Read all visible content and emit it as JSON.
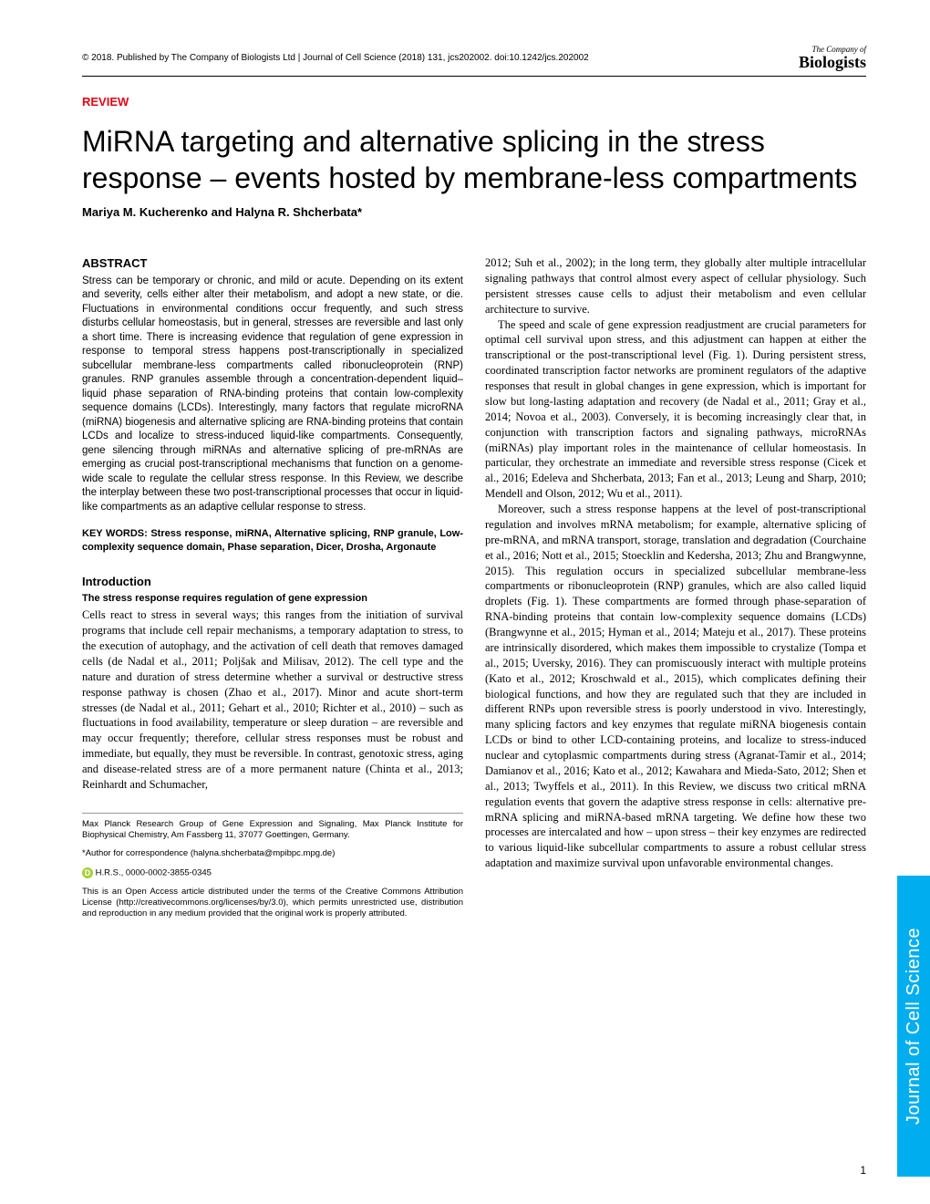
{
  "header": {
    "citation": "© 2018. Published by The Company of Biologists Ltd | Journal of Cell Science (2018) 131, jcs202002. doi:10.1242/jcs.202002",
    "logo_top": "The Company of",
    "logo_bottom": "Biologists"
  },
  "article": {
    "type_label": "REVIEW",
    "title": "MiRNA targeting and alternative splicing in the stress response – events hosted by membrane-less compartments",
    "authors": "Mariya M. Kucherenko and Halyna R. Shcherbata*"
  },
  "abstract": {
    "heading": "ABSTRACT",
    "text": "Stress can be temporary or chronic, and mild or acute. Depending on its extent and severity, cells either alter their metabolism, and adopt a new state, or die. Fluctuations in environmental conditions occur frequently, and such stress disturbs cellular homeostasis, but in general, stresses are reversible and last only a short time. There is increasing evidence that regulation of gene expression in response to temporal stress happens post-transcriptionally in specialized subcellular membrane-less compartments called ribonucleoprotein (RNP) granules. RNP granules assemble through a concentration-dependent liquid–liquid phase separation of RNA-binding proteins that contain low-complexity sequence domains (LCDs). Interestingly, many factors that regulate microRNA (miRNA) biogenesis and alternative splicing are RNA-binding proteins that contain LCDs and localize to stress-induced liquid-like compartments. Consequently, gene silencing through miRNAs and alternative splicing of pre-mRNAs are emerging as crucial post-transcriptional mechanisms that function on a genome-wide scale to regulate the cellular stress response. In this Review, we describe the interplay between these two post-transcriptional processes that occur in liquid-like compartments as an adaptive cellular response to stress."
  },
  "keywords": {
    "text": "KEY WORDS: Stress response, miRNA, Alternative splicing, RNP granule, Low-complexity sequence domain, Phase separation, Dicer, Drosha, Argonaute"
  },
  "intro": {
    "heading": "Introduction",
    "subheading": "The stress response requires regulation of gene expression",
    "para1": "Cells react to stress in several ways; this ranges from the initiation of survival programs that include cell repair mechanisms, a temporary adaptation to stress, to the execution of autophagy, and the activation of cell death that removes damaged cells (de Nadal et al., 2011; Poljšak and Milisav, 2012). The cell type and the nature and duration of stress determine whether a survival or destructive stress response pathway is chosen (Zhao et al., 2017). Minor and acute short-term stresses (de Nadal et al., 2011; Gehart et al., 2010; Richter et al., 2010) – such as fluctuations in food availability, temperature or sleep duration – are reversible and may occur frequently; therefore, cellular stress responses must be robust and immediate, but equally, they must be reversible. In contrast, genotoxic stress, aging and disease-related stress are of a more permanent nature (Chinta et al., 2013; Reinhardt and Schumacher,"
  },
  "col2": {
    "para1": "2012; Suh et al., 2002); in the long term, they globally alter multiple intracellular signaling pathways that control almost every aspect of cellular physiology. Such persistent stresses cause cells to adjust their metabolism and even cellular architecture to survive.",
    "para2": "The speed and scale of gene expression readjustment are crucial parameters for optimal cell survival upon stress, and this adjustment can happen at either the transcriptional or the post-transcriptional level (Fig. 1). During persistent stress, coordinated transcription factor networks are prominent regulators of the adaptive responses that result in global changes in gene expression, which is important for slow but long-lasting adaptation and recovery (de Nadal et al., 2011; Gray et al., 2014; Novoa et al., 2003). Conversely, it is becoming increasingly clear that, in conjunction with transcription factors and signaling pathways, microRNAs (miRNAs) play important roles in the maintenance of cellular homeostasis. In particular, they orchestrate an immediate and reversible stress response (Cicek et al., 2016; Edeleva and Shcherbata, 2013; Fan et al., 2013; Leung and Sharp, 2010; Mendell and Olson, 2012; Wu et al., 2011).",
    "para3": "Moreover, such a stress response happens at the level of post-transcriptional regulation and involves mRNA metabolism; for example, alternative splicing of pre-mRNA, and mRNA transport, storage, translation and degradation (Courchaine et al., 2016; Nott et al., 2015; Stoecklin and Kedersha, 2013; Zhu and Brangwynne, 2015). This regulation occurs in specialized subcellular membrane-less compartments or ribonucleoprotein (RNP) granules, which are also called liquid droplets (Fig. 1). These compartments are formed through phase-separation of RNA-binding proteins that contain low-complexity sequence domains (LCDs) (Brangwynne et al., 2015; Hyman et al., 2014; Mateju et al., 2017). These proteins are intrinsically disordered, which makes them impossible to crystalize (Tompa et al., 2015; Uversky, 2016). They can promiscuously interact with multiple proteins (Kato et al., 2012; Kroschwald et al., 2015), which complicates defining their biological functions, and how they are regulated such that they are included in different RNPs upon reversible stress is poorly understood in vivo. Interestingly, many splicing factors and key enzymes that regulate miRNA biogenesis contain LCDs or bind to other LCD-containing proteins, and localize to stress-induced nuclear and cytoplasmic compartments during stress (Agranat-Tamir et al., 2014; Damianov et al., 2016; Kato et al., 2012; Kawahara and Mieda-Sato, 2012; Shen et al., 2013; Twyffels et al., 2011). In this Review, we discuss two critical mRNA regulation events that govern the adaptive stress response in cells: alternative pre-mRNA splicing and miRNA-based mRNA targeting. We define how these two processes are intercalated and how – upon stress – their key enzymes are redirected to various liquid-like subcellular compartments to assure a robust cellular stress adaptation and maximize survival upon unfavorable environmental changes."
  },
  "footnotes": {
    "affiliation": "Max Planck Research Group of Gene Expression and Signaling, Max Planck Institute for Biophysical Chemistry, Am Fassberg 11, 37077 Goettingen, Germany.",
    "correspondence": "*Author for correspondence (halyna.shcherbata@mpibpc.mpg.de)",
    "orcid_initials": "H.R.S.,",
    "orcid": "0000-0002-3855-0345",
    "license": "This is an Open Access article distributed under the terms of the Creative Commons Attribution License (http://creativecommons.org/licenses/by/3.0), which permits unrestricted use, distribution and reproduction in any medium provided that the original work is properly attributed."
  },
  "side_tab": "Journal of Cell Science",
  "page_number": "1",
  "colors": {
    "accent_red": "#e30613",
    "tab_blue": "#00aeef",
    "orcid_green": "#a6ce39"
  }
}
